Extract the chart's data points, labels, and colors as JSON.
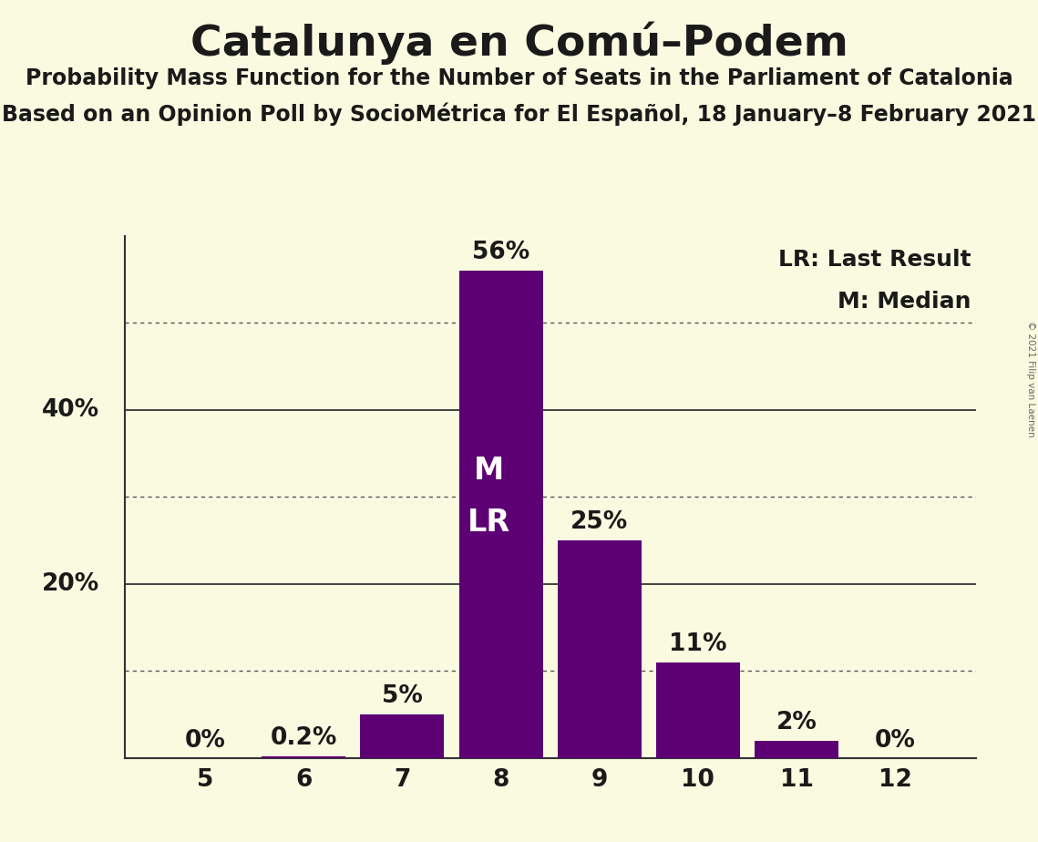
{
  "title": "Catalunya en Comú–Podem",
  "subtitle1": "Probability Mass Function for the Number of Seats in the Parliament of Catalonia",
  "subtitle2": "Based on an Opinion Poll by SocioMétrica for El Español, 18 January–8 February 2021",
  "copyright": "© 2021 Filip van Laenen",
  "legend_lr": "LR: Last Result",
  "legend_m": "M: Median",
  "categories": [
    5,
    6,
    7,
    8,
    9,
    10,
    11,
    12
  ],
  "values": [
    0.0,
    0.2,
    5.0,
    56.0,
    25.0,
    11.0,
    2.0,
    0.0
  ],
  "labels": [
    "0%",
    "0.2%",
    "5%",
    "56%",
    "25%",
    "11%",
    "2%",
    "0%"
  ],
  "bar_color": "#5C0073",
  "background_color": "#FAFAE0",
  "text_color": "#1a1a1a",
  "label_color_outside": "#1a1a1a",
  "label_color_inside": "#FFFFFF",
  "median_seat": 8,
  "last_result_seat": 8,
  "ylim": [
    0,
    60
  ],
  "yticks": [
    10,
    20,
    30,
    40,
    50
  ],
  "ytick_labels_solid": [
    20,
    40
  ],
  "ytick_labels_dotted": [
    10,
    30,
    50
  ],
  "title_fontsize": 34,
  "subtitle_fontsize": 17,
  "bar_label_fontsize": 19,
  "axis_tick_fontsize": 19,
  "legend_fontsize": 18,
  "inside_label_fontsize": 24
}
